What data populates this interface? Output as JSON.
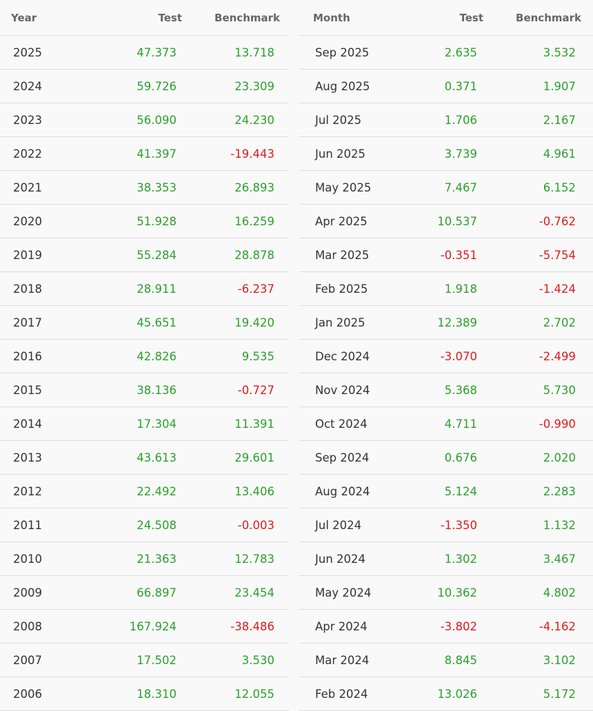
{
  "colors": {
    "positive": "#2ca02c",
    "negative": "#e31a1c"
  },
  "yearly": {
    "headers": [
      "Year",
      "Test",
      "Benchmark"
    ],
    "rows": [
      {
        "label": "2025",
        "test": "47.373",
        "bench": "13.718"
      },
      {
        "label": "2024",
        "test": "59.726",
        "bench": "23.309"
      },
      {
        "label": "2023",
        "test": "56.090",
        "bench": "24.230"
      },
      {
        "label": "2022",
        "test": "41.397",
        "bench": "-19.443"
      },
      {
        "label": "2021",
        "test": "38.353",
        "bench": "26.893"
      },
      {
        "label": "2020",
        "test": "51.928",
        "bench": "16.259"
      },
      {
        "label": "2019",
        "test": "55.284",
        "bench": "28.878"
      },
      {
        "label": "2018",
        "test": "28.911",
        "bench": "-6.237"
      },
      {
        "label": "2017",
        "test": "45.651",
        "bench": "19.420"
      },
      {
        "label": "2016",
        "test": "42.826",
        "bench": "9.535"
      },
      {
        "label": "2015",
        "test": "38.136",
        "bench": "-0.727"
      },
      {
        "label": "2014",
        "test": "17.304",
        "bench": "11.391"
      },
      {
        "label": "2013",
        "test": "43.613",
        "bench": "29.601"
      },
      {
        "label": "2012",
        "test": "22.492",
        "bench": "13.406"
      },
      {
        "label": "2011",
        "test": "24.508",
        "bench": "-0.003"
      },
      {
        "label": "2010",
        "test": "21.363",
        "bench": "12.783"
      },
      {
        "label": "2009",
        "test": "66.897",
        "bench": "23.454"
      },
      {
        "label": "2008",
        "test": "167.924",
        "bench": "-38.486"
      },
      {
        "label": "2007",
        "test": "17.502",
        "bench": "3.530"
      },
      {
        "label": "2006",
        "test": "18.310",
        "bench": "12.055"
      }
    ]
  },
  "monthly": {
    "headers": [
      "Month",
      "Test",
      "Benchmark"
    ],
    "rows": [
      {
        "label": "Sep 2025",
        "test": "2.635",
        "bench": "3.532"
      },
      {
        "label": "Aug 2025",
        "test": "0.371",
        "bench": "1.907"
      },
      {
        "label": "Jul 2025",
        "test": "1.706",
        "bench": "2.167"
      },
      {
        "label": "Jun 2025",
        "test": "3.739",
        "bench": "4.961"
      },
      {
        "label": "May 2025",
        "test": "7.467",
        "bench": "6.152"
      },
      {
        "label": "Apr 2025",
        "test": "10.537",
        "bench": "-0.762"
      },
      {
        "label": "Mar 2025",
        "test": "-0.351",
        "bench": "-5.754"
      },
      {
        "label": "Feb 2025",
        "test": "1.918",
        "bench": "-1.424"
      },
      {
        "label": "Jan 2025",
        "test": "12.389",
        "bench": "2.702"
      },
      {
        "label": "Dec 2024",
        "test": "-3.070",
        "bench": "-2.499"
      },
      {
        "label": "Nov 2024",
        "test": "5.368",
        "bench": "5.730"
      },
      {
        "label": "Oct 2024",
        "test": "4.711",
        "bench": "-0.990"
      },
      {
        "label": "Sep 2024",
        "test": "0.676",
        "bench": "2.020"
      },
      {
        "label": "Aug 2024",
        "test": "5.124",
        "bench": "2.283"
      },
      {
        "label": "Jul 2024",
        "test": "-1.350",
        "bench": "1.132"
      },
      {
        "label": "Jun 2024",
        "test": "1.302",
        "bench": "3.467"
      },
      {
        "label": "May 2024",
        "test": "10.362",
        "bench": "4.802"
      },
      {
        "label": "Apr 2024",
        "test": "-3.802",
        "bench": "-4.162"
      },
      {
        "label": "Mar 2024",
        "test": "8.845",
        "bench": "3.102"
      },
      {
        "label": "Feb 2024",
        "test": "13.026",
        "bench": "5.172"
      }
    ]
  }
}
